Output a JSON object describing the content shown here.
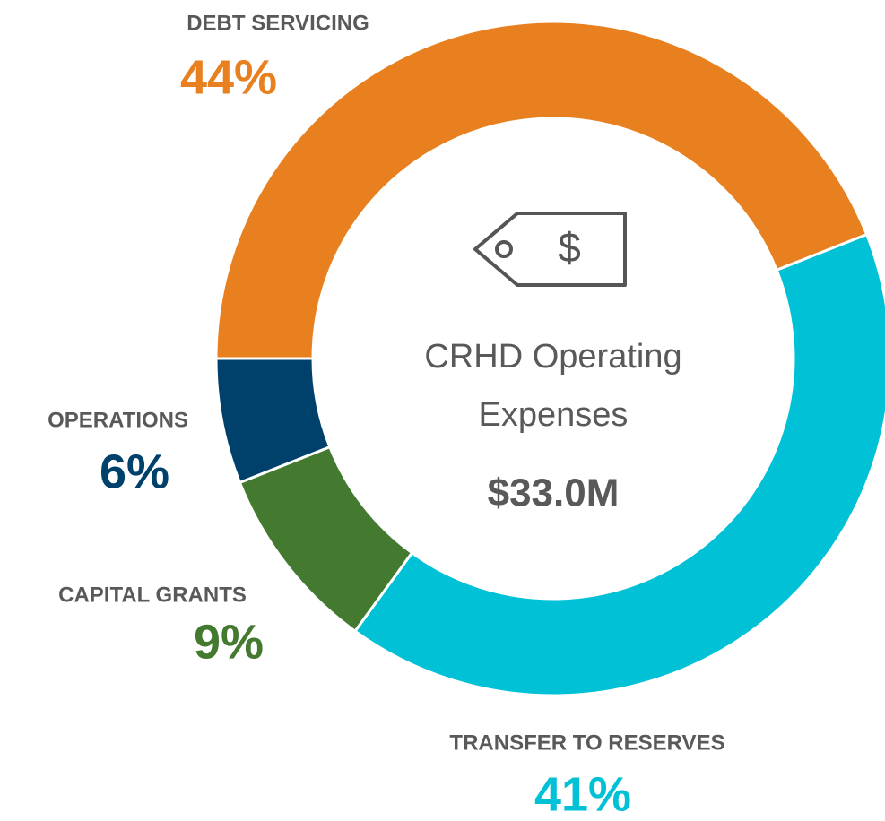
{
  "chart_data": {
    "type": "pie",
    "categories": [
      "DEBT SERVICING",
      "TRANSFER TO RESERVES",
      "CAPITAL GRANTS",
      "OPERATIONS"
    ],
    "values": [
      44,
      41,
      9,
      6
    ],
    "value_labels": [
      "44%",
      "41%",
      "9%",
      "6%"
    ],
    "colors": [
      "#e8801f",
      "#00c1d5",
      "#437a30",
      "#00416b"
    ],
    "center_title": [
      "CRHD Operating",
      "Expenses"
    ],
    "center_value": "$33.0M"
  }
}
